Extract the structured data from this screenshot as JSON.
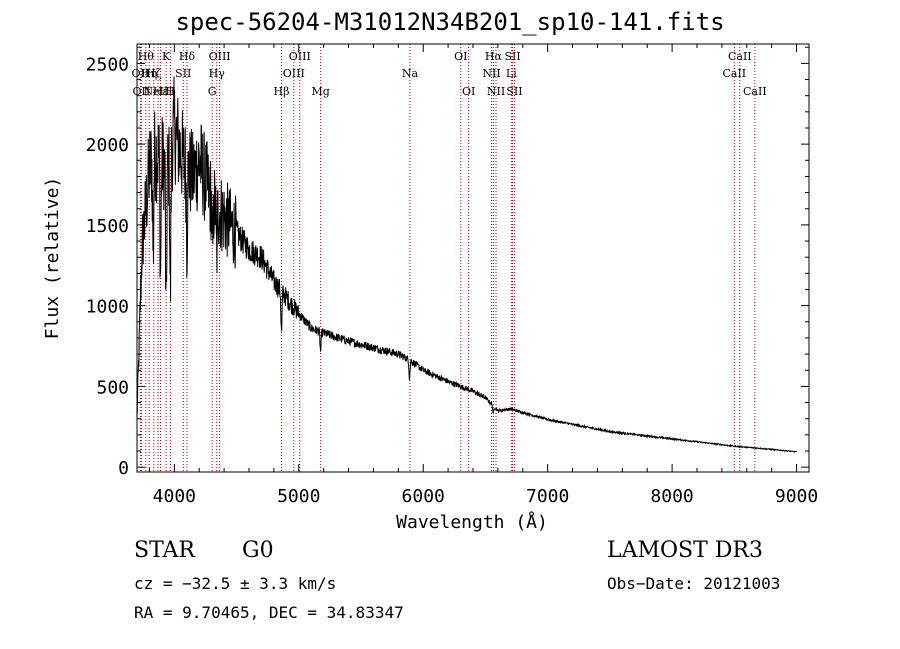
{
  "title": "spec-56204-M31012N34B201_sp10-141.fits",
  "chart_data": {
    "type": "line",
    "title": "spec-56204-M31012N34B201_sp10-141.fits",
    "xlabel": "Wavelength (Å)",
    "ylabel": "Flux (relative)",
    "xlim": [
      3700,
      9100
    ],
    "ylim": [
      -30,
      2620
    ],
    "x_ticks": [
      4000,
      5000,
      6000,
      7000,
      8000,
      9000
    ],
    "x_tick_labels": [
      "4000",
      "5000",
      "6000",
      "7000",
      "8000",
      "9000"
    ],
    "y_ticks": [
      0,
      500,
      1000,
      1500,
      2000,
      2500
    ],
    "y_tick_labels": [
      "0",
      "500",
      "1000",
      "1500",
      "2000",
      "2500"
    ],
    "spectrum_anchors": {
      "x": [
        3700,
        3740,
        3800,
        3850,
        3900,
        3950,
        4000,
        4050,
        4100,
        4150,
        4200,
        4300,
        4400,
        4500,
        4600,
        4700,
        4800,
        4900,
        5000,
        5100,
        5200,
        5400,
        5600,
        5800,
        5900,
        6000,
        6200,
        6400,
        6500,
        6600,
        6700,
        7000,
        7500,
        8000,
        8500,
        8800,
        9000
      ],
      "y": [
        300,
        1350,
        1850,
        1950,
        1900,
        1850,
        2100,
        1950,
        1850,
        1800,
        1900,
        1650,
        1550,
        1450,
        1350,
        1300,
        1150,
        1050,
        950,
        860,
        830,
        780,
        740,
        700,
        660,
        600,
        530,
        470,
        430,
        350,
        360,
        295,
        220,
        175,
        130,
        110,
        95
      ]
    },
    "absorption_features": [
      {
        "x": 3830,
        "depth": 600
      },
      {
        "x": 3889,
        "depth": 700
      },
      {
        "x": 3934,
        "depth": 1000
      },
      {
        "x": 3968,
        "depth": 900
      },
      {
        "x": 4101,
        "depth": 450
      },
      {
        "x": 4307,
        "depth": 350
      },
      {
        "x": 4340,
        "depth": 300
      },
      {
        "x": 4861,
        "depth": 260
      },
      {
        "x": 5175,
        "depth": 120
      },
      {
        "x": 5890,
        "depth": 110
      },
      {
        "x": 6563,
        "depth": 50
      }
    ],
    "spectral_lines": [
      {
        "x": 3727,
        "label": "OII",
        "row": 2
      },
      {
        "x": 3735,
        "label": "OII",
        "row": 3
      },
      {
        "x": 3771,
        "label": "Hθ",
        "row": 1
      },
      {
        "x": 3798,
        "label": "Hη",
        "row": 2
      },
      {
        "x": 3835,
        "label": "Hζ",
        "row": 2
      },
      {
        "x": 3869,
        "label": "NeIII",
        "row": 3
      },
      {
        "x": 3889,
        "label": "Hε",
        "row": 3
      },
      {
        "x": 3934,
        "label": "K",
        "row": 1
      },
      {
        "x": 3968,
        "label": "H",
        "row": 3
      },
      {
        "x": 4072,
        "label": "SII",
        "row": 2
      },
      {
        "x": 4102,
        "label": "Hδ",
        "row": 1
      },
      {
        "x": 4304,
        "label": "G",
        "row": 3
      },
      {
        "x": 4341,
        "label": "Hγ",
        "row": 2
      },
      {
        "x": 4364,
        "label": "OIII",
        "row": 1
      },
      {
        "x": 4861,
        "label": "Hβ",
        "row": 3
      },
      {
        "x": 4960,
        "label": "OIII",
        "row": 2
      },
      {
        "x": 5008,
        "label": "OIII",
        "row": 1
      },
      {
        "x": 5176,
        "label": "Mg",
        "row": 3
      },
      {
        "x": 5893,
        "label": "Na",
        "row": 2
      },
      {
        "x": 6302,
        "label": "OI",
        "row": 1
      },
      {
        "x": 6365,
        "label": "OI",
        "row": 3
      },
      {
        "x": 6549,
        "label": "NII",
        "row": 2
      },
      {
        "x": 6564,
        "label": "Hα",
        "row": 1
      },
      {
        "x": 6585,
        "label": "NII",
        "row": 3
      },
      {
        "x": 6708,
        "label": "Li",
        "row": 2
      },
      {
        "x": 6718,
        "label": "SII",
        "row": 1
      },
      {
        "x": 6733,
        "label": "SII",
        "row": 3
      },
      {
        "x": 8500,
        "label": "CaII",
        "row": 2
      },
      {
        "x": 8544,
        "label": "CaII",
        "row": 1
      },
      {
        "x": 8665,
        "label": "CaII",
        "row": 3
      }
    ]
  },
  "info": {
    "class_label": "STAR",
    "subclass_label": "G0",
    "survey_label": "LAMOST DR3",
    "cz_label": "cz = −32.5 ± 3.3 km/s",
    "obs_date_label": "Obs−Date: 20121003",
    "coords_label": "RA =   9.70465, DEC =  34.83347"
  }
}
